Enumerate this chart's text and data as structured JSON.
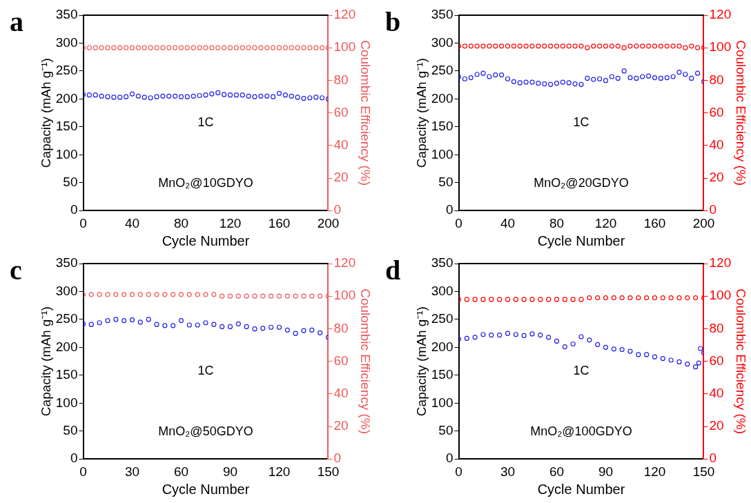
{
  "chart_data": [
    {
      "type": "scatter",
      "title": "a",
      "xlabel": "Cycle Number",
      "ylabel": "Capacity (mAh g⁻¹)",
      "y2label": "Coulombic Efficiency (%)",
      "annotations": [
        "1C",
        "MnO₂@10GDYO"
      ],
      "marker": "circle",
      "xlim": [
        0,
        200
      ],
      "xticks": [
        0,
        40,
        80,
        120,
        160,
        200
      ],
      "ylim": [
        0,
        350
      ],
      "yticks": [
        0,
        50,
        100,
        150,
        200,
        250,
        300,
        350
      ],
      "y2lim": [
        0,
        120
      ],
      "y2ticks": [
        0,
        20,
        40,
        60,
        80,
        100,
        120
      ],
      "x": [
        0,
        5,
        10,
        15,
        20,
        25,
        30,
        35,
        40,
        45,
        50,
        55,
        60,
        65,
        70,
        75,
        80,
        85,
        90,
        95,
        100,
        105,
        110,
        115,
        120,
        125,
        130,
        135,
        140,
        145,
        150,
        155,
        160,
        165,
        170,
        175,
        180,
        185,
        190,
        195,
        200
      ],
      "series": [
        {
          "color": "#2020e8",
          "values": [
            208,
            207,
            207,
            205,
            204,
            203,
            203,
            204,
            209,
            205,
            203,
            202,
            204,
            205,
            205,
            205,
            204,
            204,
            205,
            206,
            207,
            209,
            211,
            208,
            207,
            207,
            207,
            205,
            204,
            205,
            205,
            204,
            210,
            207,
            205,
            203,
            201,
            202,
            203,
            202,
            200
          ]
        },
        {
          "color": "#f05858",
          "axis": "y2",
          "values": [
            100,
            100,
            100,
            100,
            100,
            100,
            100,
            100,
            100,
            100,
            100,
            100,
            100,
            100,
            100,
            100,
            100,
            100,
            100,
            100,
            100,
            100,
            100,
            100,
            100,
            100,
            100,
            100,
            100,
            100,
            100,
            100,
            100,
            100,
            100,
            100,
            100,
            100,
            100,
            100,
            100
          ]
        }
      ]
    },
    {
      "type": "scatter",
      "title": "b",
      "xlabel": "Cycle Number",
      "ylabel": "Capacity (mAh g⁻¹)",
      "y2label": "Coulombic Efficiency (%)",
      "annotations": [
        "1C",
        "MnO₂@20GDYO"
      ],
      "marker": "circle",
      "xlim": [
        0,
        200
      ],
      "xticks": [
        0,
        40,
        80,
        120,
        160,
        200
      ],
      "ylim": [
        0,
        350
      ],
      "yticks": [
        0,
        50,
        100,
        150,
        200,
        250,
        300,
        350
      ],
      "y2lim": [
        0,
        120
      ],
      "y2ticks": [
        0,
        20,
        40,
        60,
        80,
        100,
        120
      ],
      "x": [
        0,
        5,
        10,
        15,
        20,
        25,
        30,
        35,
        40,
        45,
        50,
        55,
        60,
        65,
        70,
        75,
        80,
        85,
        90,
        95,
        100,
        105,
        110,
        115,
        120,
        125,
        130,
        135,
        140,
        145,
        150,
        155,
        160,
        165,
        170,
        175,
        180,
        185,
        190,
        195,
        200
      ],
      "series": [
        {
          "color": "#2020e8",
          "values": [
            240,
            236,
            238,
            244,
            246,
            240,
            243,
            243,
            236,
            231,
            229,
            230,
            230,
            228,
            227,
            226,
            228,
            230,
            229,
            227,
            226,
            237,
            235,
            236,
            233,
            240,
            237,
            250,
            238,
            237,
            240,
            241,
            238,
            237,
            238,
            240,
            248,
            244,
            237,
            246,
            231
          ]
        },
        {
          "color": "#ff0000",
          "axis": "y2",
          "values": [
            101,
            101,
            101,
            101,
            101,
            101,
            101,
            101,
            101,
            101,
            101,
            101,
            101,
            101,
            101,
            101,
            101,
            101,
            101,
            101,
            101,
            100,
            101,
            101,
            101,
            101,
            101,
            100,
            101,
            101,
            101,
            101,
            101,
            101,
            101,
            101,
            101,
            100,
            101,
            100,
            100
          ]
        }
      ]
    },
    {
      "type": "scatter",
      "title": "c",
      "xlabel": "Cycle Number",
      "ylabel": "Capacity (mAh g⁻¹)",
      "y2label": "Coulombic Efficiency (%)",
      "annotations": [
        "1C",
        "MnO₂@50GDYO"
      ],
      "marker": "circle",
      "xlim": [
        0,
        150
      ],
      "xticks": [
        0,
        30,
        60,
        90,
        120,
        150
      ],
      "ylim": [
        0,
        350
      ],
      "yticks": [
        0,
        50,
        100,
        150,
        200,
        250,
        300,
        350
      ],
      "y2lim": [
        0,
        120
      ],
      "y2ticks": [
        0,
        20,
        40,
        60,
        80,
        100,
        120
      ],
      "x": [
        0,
        5,
        10,
        15,
        20,
        25,
        30,
        35,
        40,
        45,
        50,
        55,
        60,
        65,
        70,
        75,
        80,
        85,
        90,
        95,
        100,
        105,
        110,
        115,
        120,
        125,
        130,
        135,
        140,
        145,
        150
      ],
      "series": [
        {
          "color": "#2020e8",
          "values": [
            242,
            241,
            244,
            248,
            250,
            248,
            249,
            245,
            250,
            241,
            239,
            239,
            248,
            240,
            240,
            244,
            241,
            237,
            237,
            242,
            237,
            233,
            234,
            236,
            236,
            231,
            225,
            230,
            231,
            226,
            218
          ]
        },
        {
          "color": "#f05858",
          "axis": "y2",
          "values": [
            101,
            101,
            101,
            101,
            101,
            101,
            101,
            101,
            101,
            101,
            101,
            101,
            101,
            101,
            101,
            101,
            101,
            100,
            100,
            100,
            100,
            100,
            100,
            100,
            100,
            100,
            100,
            100,
            100,
            100,
            100
          ]
        }
      ]
    },
    {
      "type": "scatter",
      "title": "d",
      "xlabel": "Cycle Number",
      "ylabel": "Capacity (mAh g⁻¹)",
      "y2label": "Coulombic Efficiency (%)",
      "annotations": [
        "1C",
        "MnO₂@100GDYO"
      ],
      "marker": "circle",
      "xlim": [
        0,
        150
      ],
      "xticks": [
        0,
        30,
        60,
        90,
        120,
        150
      ],
      "ylim": [
        0,
        350
      ],
      "yticks": [
        0,
        50,
        100,
        150,
        200,
        250,
        300,
        350
      ],
      "y2lim": [
        0,
        120
      ],
      "y2ticks": [
        0,
        20,
        40,
        60,
        80,
        100,
        120
      ],
      "x": [
        0,
        5,
        10,
        15,
        20,
        25,
        30,
        35,
        40,
        45,
        50,
        55,
        60,
        65,
        70,
        75,
        80,
        85,
        90,
        95,
        100,
        105,
        110,
        115,
        120,
        125,
        130,
        135,
        140,
        145,
        147,
        148,
        150
      ],
      "series": [
        {
          "color": "#2020e8",
          "values": [
            215,
            216,
            218,
            223,
            222,
            222,
            225,
            223,
            221,
            224,
            222,
            218,
            211,
            201,
            206,
            219,
            213,
            205,
            200,
            197,
            196,
            193,
            187,
            187,
            183,
            180,
            177,
            174,
            170,
            165,
            172,
            198,
            190
          ]
        },
        {
          "color": "#ff0000",
          "axis": "y2",
          "values": [
            98,
            98,
            98,
            98,
            98,
            98,
            98,
            98,
            98,
            98,
            98,
            98,
            98,
            98,
            98,
            98,
            99,
            99,
            99,
            99,
            99,
            99,
            99,
            99,
            99,
            99,
            99,
            99,
            99,
            99,
            null,
            null,
            99
          ]
        }
      ]
    }
  ]
}
